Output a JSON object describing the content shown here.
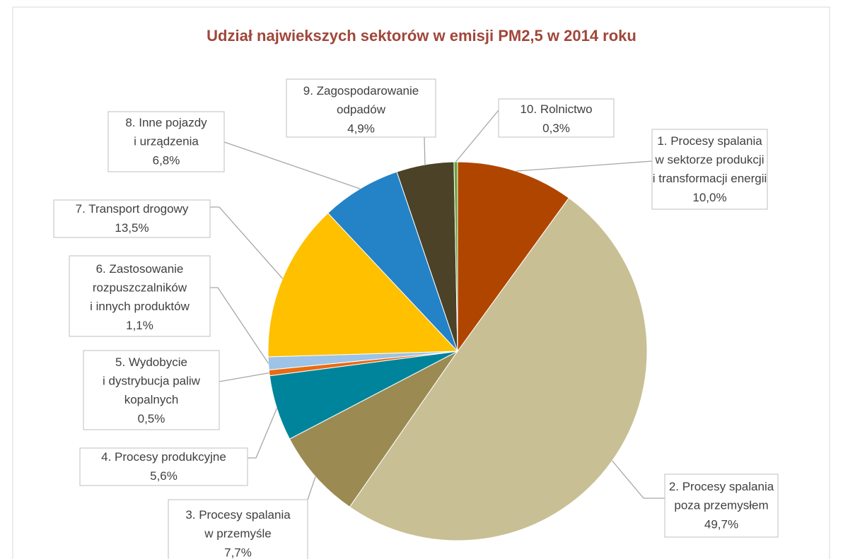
{
  "chart_data": {
    "type": "pie",
    "title": "Udział najwiekszych sektorów w emisji PM2,5 w 2014 roku",
    "categories": [
      "1. Procesy spalania\nw sektorze produkcji\ni transformacji energii",
      "2. Procesy spalania\npoza przemysłem",
      "3. Procesy spalania\nw przemyśle",
      "4. Procesy produkcyjne",
      "5. Wydobycie\ni dystrybucja paliw\nkopalnych",
      "6. Zastosowanie\nrozpuszczalników\ni innych produktów",
      "7. Transport drogowy",
      "8. Inne pojazdy\ni urządzenia",
      "9. Zagospodarowanie\nodpadów",
      "10. Rolnictwo"
    ],
    "values": [
      10.0,
      49.7,
      7.7,
      5.6,
      0.5,
      1.1,
      13.5,
      6.8,
      4.9,
      0.3
    ],
    "value_labels": [
      "10,0%",
      "49,7%",
      "7,7%",
      "5,6%",
      "0,5%",
      "1,1%",
      "13,5%",
      "6,8%",
      "4,9%",
      "0,3%"
    ],
    "colors": [
      "#b04500",
      "#c8bf95",
      "#9b8b52",
      "#00849b",
      "#ea6b12",
      "#9dc3e6",
      "#ffc000",
      "#2482c6",
      "#4b4227",
      "#6aa33c"
    ]
  }
}
